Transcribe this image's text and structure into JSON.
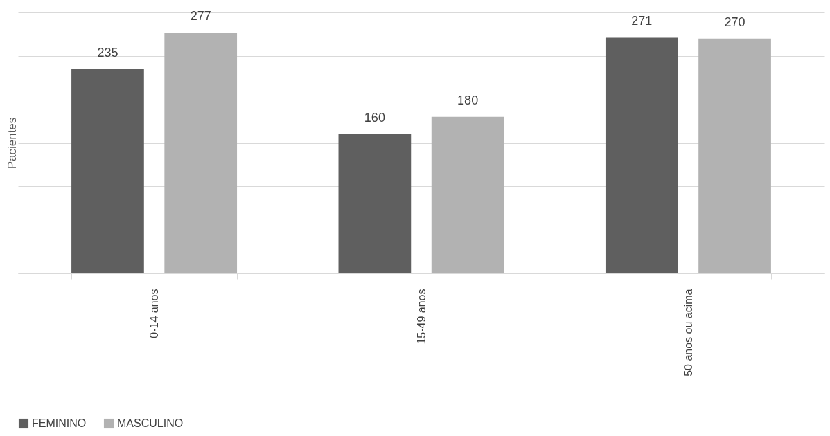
{
  "chart_data": {
    "type": "bar",
    "ylabel": "Pacientes",
    "categories": [
      "0-14 anos",
      "15-49 anos",
      "50 anos ou acima"
    ],
    "series": [
      {
        "name": "FEMININO",
        "color": "#5f5f5f",
        "values": [
          235,
          160,
          271
        ]
      },
      {
        "name": "MASCULINO",
        "color": "#b2b2b2",
        "values": [
          277,
          180,
          270
        ]
      }
    ],
    "ylim": [
      0,
      300
    ],
    "yticks": [
      {
        "value": 0,
        "label": null
      },
      {
        "value": 50,
        "label": null
      },
      {
        "value": 100,
        "label": null
      },
      {
        "value": 150,
        "label": null
      },
      {
        "value": 200,
        "label": null
      },
      {
        "value": 250,
        "label": null
      },
      {
        "value": 300,
        "label": null
      }
    ],
    "tick_labels": "x",
    "grid": "y",
    "legend": "bottom",
    "data_labels": true
  }
}
